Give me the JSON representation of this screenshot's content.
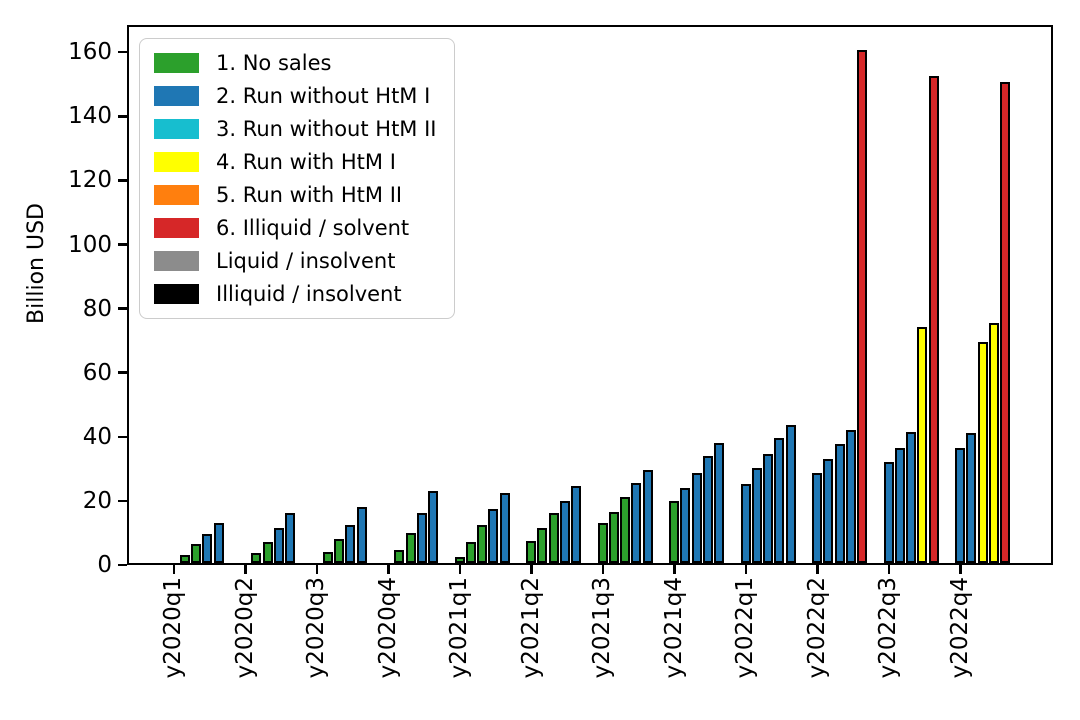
{
  "chart_data": {
    "type": "bar",
    "title": "",
    "xlabel": "",
    "ylabel": "Billion USD",
    "ylim": [
      0,
      168.5
    ],
    "yticks": [
      0,
      20,
      40,
      60,
      80,
      100,
      120,
      140,
      160
    ],
    "grid": false,
    "categories": [
      "y2020q1",
      "y2020q2",
      "y2020q3",
      "y2020q4",
      "y2021q1",
      "y2021q2",
      "y2021q3",
      "y2021q4",
      "y2022q1",
      "y2022q2",
      "y2022q3",
      "y2022q4"
    ],
    "groups": [
      {
        "label": "y2020q1",
        "bars": [
          {
            "color": "green",
            "value": 0
          },
          {
            "color": "green",
            "value": 2.5
          },
          {
            "color": "green",
            "value": 6
          },
          {
            "color": "blue",
            "value": 9
          },
          {
            "color": "blue",
            "value": 12.5
          }
        ]
      },
      {
        "label": "y2020q2",
        "bars": [
          {
            "color": "green",
            "value": 0
          },
          {
            "color": "green",
            "value": 3
          },
          {
            "color": "green",
            "value": 6.5
          },
          {
            "color": "blue",
            "value": 11
          },
          {
            "color": "blue",
            "value": 15.5
          }
        ]
      },
      {
        "label": "y2020q3",
        "bars": [
          {
            "color": "green",
            "value": 0
          },
          {
            "color": "green",
            "value": 3.5
          },
          {
            "color": "green",
            "value": 7.5
          },
          {
            "color": "blue",
            "value": 12
          },
          {
            "color": "blue",
            "value": 17.5
          }
        ]
      },
      {
        "label": "y2020q4",
        "bars": [
          {
            "color": "green",
            "value": 0
          },
          {
            "color": "green",
            "value": 4
          },
          {
            "color": "green",
            "value": 9.5
          },
          {
            "color": "blue",
            "value": 15.5
          },
          {
            "color": "blue",
            "value": 22.5
          }
        ]
      },
      {
        "label": "y2021q1",
        "bars": [
          {
            "color": "green",
            "value": 2
          },
          {
            "color": "green",
            "value": 6.5
          },
          {
            "color": "green",
            "value": 12
          },
          {
            "color": "blue",
            "value": 17
          },
          {
            "color": "blue",
            "value": 22
          }
        ]
      },
      {
        "label": "y2021q2",
        "bars": [
          {
            "color": "green",
            "value": 7
          },
          {
            "color": "green",
            "value": 11
          },
          {
            "color": "green",
            "value": 15.5
          },
          {
            "color": "blue",
            "value": 19.5
          },
          {
            "color": "blue",
            "value": 24
          }
        ]
      },
      {
        "label": "y2021q3",
        "bars": [
          {
            "color": "green",
            "value": 12.5
          },
          {
            "color": "green",
            "value": 16
          },
          {
            "color": "green",
            "value": 20.5
          },
          {
            "color": "blue",
            "value": 25
          },
          {
            "color": "blue",
            "value": 29
          }
        ]
      },
      {
        "label": "y2021q4",
        "bars": [
          {
            "color": "green",
            "value": 19.5
          },
          {
            "color": "blue",
            "value": 23.5
          },
          {
            "color": "blue",
            "value": 28
          },
          {
            "color": "blue",
            "value": 33.5
          },
          {
            "color": "blue",
            "value": 37.5
          }
        ]
      },
      {
        "label": "y2022q1",
        "bars": [
          {
            "color": "blue",
            "value": 24.5
          },
          {
            "color": "blue",
            "value": 29.5
          },
          {
            "color": "blue",
            "value": 34
          },
          {
            "color": "blue",
            "value": 39
          },
          {
            "color": "blue",
            "value": 43
          }
        ]
      },
      {
        "label": "y2022q2",
        "bars": [
          {
            "color": "blue",
            "value": 28
          },
          {
            "color": "blue",
            "value": 32.5
          },
          {
            "color": "blue",
            "value": 37
          },
          {
            "color": "blue",
            "value": 41.5
          },
          {
            "color": "red",
            "value": 160
          }
        ]
      },
      {
        "label": "y2022q3",
        "bars": [
          {
            "color": "blue",
            "value": 31.5
          },
          {
            "color": "blue",
            "value": 36
          },
          {
            "color": "blue",
            "value": 41
          },
          {
            "color": "yellow",
            "value": 73.5
          },
          {
            "color": "red",
            "value": 152
          }
        ]
      },
      {
        "label": "y2022q4",
        "bars": [
          {
            "color": "blue",
            "value": 36
          },
          {
            "color": "blue",
            "value": 40.5
          },
          {
            "color": "yellow",
            "value": 69
          },
          {
            "color": "yellow",
            "value": 75
          },
          {
            "color": "red",
            "value": 150
          }
        ]
      }
    ],
    "legend": {
      "position": "upper left",
      "entries": [
        {
          "label": "1. No sales",
          "color": "green"
        },
        {
          "label": "2. Run without HtM I",
          "color": "blue"
        },
        {
          "label": "3. Run without HtM II",
          "color": "cyan"
        },
        {
          "label": "4. Run with HtM I",
          "color": "yellow"
        },
        {
          "label": "5. Run with HtM II",
          "color": "orange"
        },
        {
          "label": "6. Illiquid / solvent",
          "color": "red"
        },
        {
          "label": "Liquid / insolvent",
          "color": "gray"
        },
        {
          "label": "Illiquid / insolvent",
          "color": "black"
        }
      ]
    },
    "palette": {
      "green": "#2ca02c",
      "blue": "#1f77b4",
      "cyan": "#17becf",
      "yellow": "#ffff00",
      "orange": "#ff7f0e",
      "red": "#d62728",
      "gray": "#8c8c8c",
      "black": "#000000"
    },
    "bar_edge_color": "#000000"
  }
}
